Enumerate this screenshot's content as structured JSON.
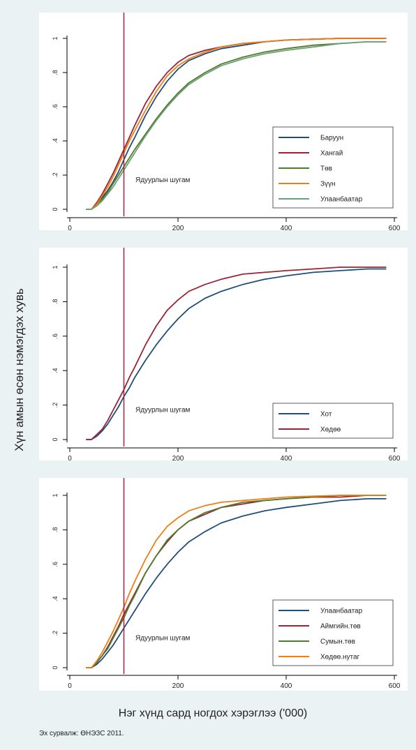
{
  "figure": {
    "ylabel": "Хүн амын өсөн нэмэгдэх хувь",
    "xlabel": "Нэг хүнд сард ногдох хэрэглээ ('000)",
    "source": "Эх сурвалж: ӨНЭЗС 2011."
  },
  "chart_data": [
    {
      "type": "line",
      "xlim": [
        0,
        600
      ],
      "ylim": [
        0,
        1
      ],
      "x_ticks": [
        0,
        200,
        400,
        600
      ],
      "y_ticks": [
        0,
        0.2,
        0.4,
        0.6,
        0.8,
        1
      ],
      "x_tick_labels": [
        "0",
        "200",
        "400",
        "600"
      ],
      "y_tick_labels": [
        "0",
        ".2",
        ".4",
        ".6",
        ".8",
        "1"
      ],
      "grid": false,
      "vline": {
        "x": 100,
        "label": "Ядуурлын шугам",
        "color": "#b01c3c"
      },
      "legend": {
        "placement": "bottom-right"
      },
      "series": [
        {
          "name": "Баруун",
          "color": "#1f4e79",
          "x": [
            30,
            40,
            50,
            60,
            70,
            80,
            90,
            100,
            110,
            120,
            140,
            160,
            180,
            200,
            220,
            250,
            280,
            320,
            360,
            400,
            450,
            500,
            550,
            585
          ],
          "y": [
            0,
            0,
            0.03,
            0.07,
            0.11,
            0.16,
            0.22,
            0.29,
            0.36,
            0.42,
            0.55,
            0.66,
            0.75,
            0.82,
            0.87,
            0.91,
            0.94,
            0.96,
            0.98,
            0.99,
            0.995,
            1,
            1,
            1
          ]
        },
        {
          "name": "Хангай",
          "color": "#9b2335",
          "x": [
            30,
            40,
            50,
            60,
            70,
            80,
            90,
            100,
            110,
            120,
            140,
            160,
            180,
            200,
            220,
            250,
            280,
            320,
            360,
            400,
            450,
            500,
            550,
            585
          ],
          "y": [
            0,
            0,
            0.04,
            0.09,
            0.15,
            0.21,
            0.28,
            0.35,
            0.42,
            0.49,
            0.62,
            0.72,
            0.8,
            0.86,
            0.9,
            0.93,
            0.95,
            0.97,
            0.98,
            0.99,
            0.995,
            1,
            1,
            1
          ]
        },
        {
          "name": "Төв",
          "color": "#4e7d2b",
          "x": [
            30,
            40,
            50,
            60,
            70,
            80,
            90,
            100,
            110,
            120,
            140,
            160,
            180,
            200,
            220,
            250,
            280,
            320,
            360,
            400,
            450,
            500,
            550,
            585
          ],
          "y": [
            0,
            0,
            0.03,
            0.06,
            0.1,
            0.15,
            0.2,
            0.25,
            0.3,
            0.35,
            0.44,
            0.53,
            0.61,
            0.68,
            0.74,
            0.8,
            0.85,
            0.89,
            0.92,
            0.94,
            0.96,
            0.97,
            0.98,
            0.98
          ]
        },
        {
          "name": "Зүүн",
          "color": "#ef7d12",
          "x": [
            30,
            40,
            50,
            60,
            70,
            80,
            90,
            100,
            110,
            120,
            140,
            160,
            180,
            200,
            220,
            250,
            280,
            320,
            360,
            400,
            450,
            500,
            550,
            585
          ],
          "y": [
            0,
            0,
            0.03,
            0.08,
            0.13,
            0.19,
            0.26,
            0.33,
            0.4,
            0.46,
            0.58,
            0.69,
            0.78,
            0.84,
            0.88,
            0.92,
            0.95,
            0.97,
            0.98,
            0.99,
            0.995,
            1,
            1,
            1
          ]
        },
        {
          "name": "Улаанбаатар",
          "color": "#6f9e7a",
          "x": [
            30,
            40,
            50,
            60,
            70,
            80,
            90,
            100,
            110,
            120,
            140,
            160,
            180,
            200,
            220,
            250,
            280,
            320,
            360,
            400,
            450,
            500,
            550,
            585
          ],
          "y": [
            0,
            0,
            0.02,
            0.05,
            0.09,
            0.13,
            0.18,
            0.23,
            0.28,
            0.33,
            0.43,
            0.52,
            0.6,
            0.67,
            0.73,
            0.79,
            0.84,
            0.88,
            0.91,
            0.93,
            0.95,
            0.97,
            0.98,
            0.98
          ]
        }
      ]
    },
    {
      "type": "line",
      "xlim": [
        0,
        600
      ],
      "ylim": [
        0,
        1
      ],
      "x_ticks": [
        0,
        200,
        400,
        600
      ],
      "y_ticks": [
        0,
        0.2,
        0.4,
        0.6,
        0.8,
        1
      ],
      "x_tick_labels": [
        "0",
        "200",
        "400",
        "600"
      ],
      "y_tick_labels": [
        "0",
        ".2",
        ".4",
        ".6",
        ".8",
        "1"
      ],
      "grid": false,
      "vline": {
        "x": 100,
        "label": "Ядуурлын шугам",
        "color": "#b01c3c"
      },
      "legend": {
        "placement": "bottom-right"
      },
      "series": [
        {
          "name": "Хот",
          "color": "#1f4e79",
          "x": [
            30,
            40,
            50,
            60,
            70,
            80,
            90,
            100,
            110,
            120,
            140,
            160,
            180,
            200,
            220,
            250,
            280,
            320,
            360,
            400,
            450,
            500,
            550,
            585
          ],
          "y": [
            0,
            0,
            0.02,
            0.05,
            0.09,
            0.14,
            0.19,
            0.25,
            0.3,
            0.36,
            0.46,
            0.55,
            0.63,
            0.7,
            0.76,
            0.82,
            0.86,
            0.9,
            0.93,
            0.95,
            0.97,
            0.98,
            0.99,
            0.99
          ]
        },
        {
          "name": "Хөдөө",
          "color": "#9b2335",
          "x": [
            30,
            40,
            50,
            60,
            70,
            80,
            90,
            100,
            110,
            120,
            140,
            160,
            180,
            200,
            220,
            250,
            280,
            320,
            360,
            400,
            450,
            500,
            550,
            585
          ],
          "y": [
            0,
            0,
            0.03,
            0.06,
            0.11,
            0.17,
            0.23,
            0.29,
            0.36,
            0.42,
            0.55,
            0.66,
            0.75,
            0.81,
            0.86,
            0.9,
            0.93,
            0.96,
            0.97,
            0.98,
            0.99,
            1,
            1,
            1
          ]
        }
      ]
    },
    {
      "type": "line",
      "xlim": [
        0,
        600
      ],
      "ylim": [
        0,
        1
      ],
      "x_ticks": [
        0,
        200,
        400,
        600
      ],
      "y_ticks": [
        0,
        0.2,
        0.4,
        0.6,
        0.8,
        1
      ],
      "x_tick_labels": [
        "0",
        "200",
        "400",
        "600"
      ],
      "y_tick_labels": [
        "0",
        ".2",
        ".4",
        ".6",
        ".8",
        "1"
      ],
      "grid": false,
      "vline": {
        "x": 100,
        "label": "Ядуурлын шугам",
        "color": "#b01c3c"
      },
      "legend": {
        "placement": "bottom-right"
      },
      "series": [
        {
          "name": "Улаанбаатар",
          "color": "#1f4e79",
          "x": [
            30,
            40,
            50,
            60,
            70,
            80,
            90,
            100,
            110,
            120,
            140,
            160,
            180,
            200,
            220,
            250,
            280,
            320,
            360,
            400,
            450,
            500,
            550,
            585
          ],
          "y": [
            0,
            0,
            0.02,
            0.05,
            0.09,
            0.13,
            0.18,
            0.23,
            0.28,
            0.33,
            0.43,
            0.52,
            0.6,
            0.67,
            0.73,
            0.79,
            0.84,
            0.88,
            0.91,
            0.93,
            0.95,
            0.97,
            0.98,
            0.98
          ]
        },
        {
          "name": "Аймгийн.төв",
          "color": "#9b2335",
          "x": [
            30,
            40,
            50,
            60,
            70,
            80,
            90,
            100,
            110,
            120,
            140,
            160,
            180,
            200,
            220,
            250,
            280,
            320,
            360,
            400,
            450,
            500,
            550,
            585
          ],
          "y": [
            0,
            0,
            0.03,
            0.07,
            0.12,
            0.18,
            0.24,
            0.31,
            0.37,
            0.43,
            0.55,
            0.65,
            0.73,
            0.8,
            0.85,
            0.89,
            0.93,
            0.95,
            0.97,
            0.98,
            0.99,
            0.99,
            1,
            1
          ]
        },
        {
          "name": "Сумын.төв",
          "color": "#4e7d2b",
          "x": [
            30,
            40,
            50,
            60,
            70,
            80,
            90,
            100,
            110,
            120,
            140,
            160,
            180,
            200,
            220,
            250,
            280,
            320,
            360,
            400,
            450,
            500,
            550,
            585
          ],
          "y": [
            0,
            0,
            0.03,
            0.07,
            0.11,
            0.17,
            0.23,
            0.29,
            0.36,
            0.42,
            0.55,
            0.65,
            0.74,
            0.8,
            0.85,
            0.9,
            0.93,
            0.96,
            0.97,
            0.98,
            0.99,
            1,
            1,
            1
          ]
        },
        {
          "name": "Хөдөө.нутаг",
          "color": "#ef7d12",
          "x": [
            30,
            40,
            50,
            60,
            70,
            80,
            90,
            100,
            110,
            120,
            140,
            160,
            180,
            200,
            220,
            250,
            280,
            320,
            360,
            400,
            450,
            500,
            550,
            585
          ],
          "y": [
            0,
            0,
            0.04,
            0.09,
            0.15,
            0.21,
            0.28,
            0.35,
            0.43,
            0.5,
            0.63,
            0.74,
            0.82,
            0.87,
            0.91,
            0.94,
            0.96,
            0.97,
            0.98,
            0.99,
            0.995,
            1,
            1,
            1
          ]
        }
      ]
    }
  ]
}
